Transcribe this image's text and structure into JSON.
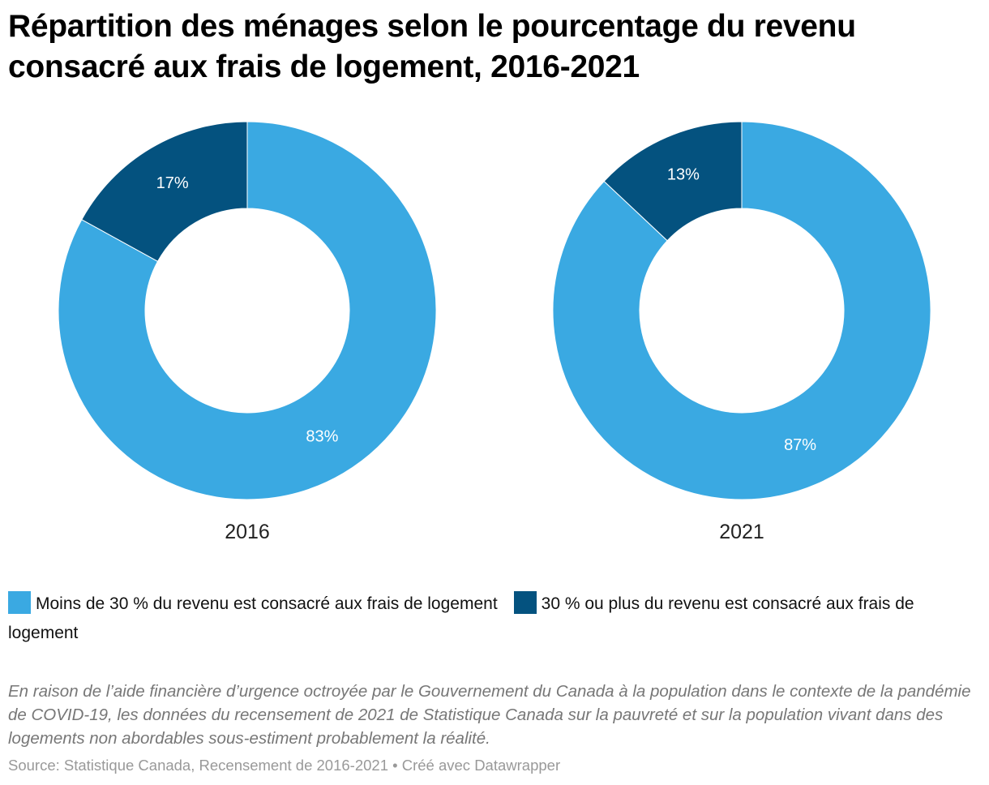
{
  "title": "Répartition des ménages selon le pourcentage du revenu consacré aux frais de logement, 2016-2021",
  "colors": {
    "light": "#3aa9e2",
    "dark": "#04527f",
    "label_text": "#ffffff",
    "background": "#ffffff"
  },
  "legend": [
    {
      "label": "Moins de 30 % du revenu est consacré aux frais de logement",
      "color": "#3aa9e2"
    },
    {
      "label": "30 % ou plus du revenu est consacré aux frais de logement",
      "color": "#04527f"
    }
  ],
  "chart_data": [
    {
      "type": "pie",
      "subtype": "donut",
      "title": "2016",
      "slices": [
        {
          "name": "Moins de 30 % du revenu est consacré aux frais de logement",
          "value": 83,
          "label": "83%",
          "color": "#3aa9e2"
        },
        {
          "name": "30 % ou plus du revenu est consacré aux frais de logement",
          "value": 17,
          "label": "17%",
          "color": "#04527f"
        }
      ]
    },
    {
      "type": "pie",
      "subtype": "donut",
      "title": "2021",
      "slices": [
        {
          "name": "Moins de 30 % du revenu est consacré aux frais de logement",
          "value": 87,
          "label": "87%",
          "color": "#3aa9e2"
        },
        {
          "name": "30 % ou plus du revenu est consacré aux frais de logement",
          "value": 13,
          "label": "13%",
          "color": "#04527f"
        }
      ]
    }
  ],
  "note": "En raison de l’aide financière d’urgence octroyée par le Gouvernement du Canada à la population dans le contexte de la pandémie de COVID-19, les données du recensement de 2021 de Statistique Canada sur la pauvreté et sur la population vivant dans des logements non abordables sous-estiment probablement la réalité.",
  "source": "Source: Statistique Canada, Recensement de 2016-2021 • Créé avec Datawrapper"
}
